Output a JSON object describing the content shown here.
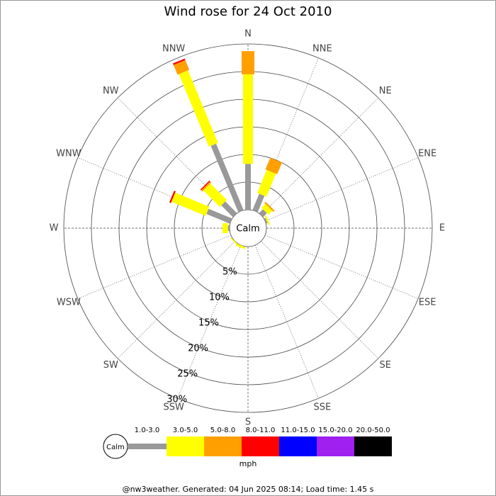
{
  "chart_data": {
    "type": "wind_rose",
    "title": "Wind rose for 24 Oct 2010",
    "directions": [
      "N",
      "NNE",
      "NE",
      "ENE",
      "E",
      "ESE",
      "SE",
      "SSE",
      "S",
      "SSW",
      "SW",
      "WSW",
      "W",
      "WNW",
      "NW",
      "NNW"
    ],
    "calm_label": "Calm",
    "unit": "mph",
    "rlim": [
      0,
      30
    ],
    "rticks": [
      {
        "value": 5,
        "label": "5%"
      },
      {
        "value": 10,
        "label": "10%"
      },
      {
        "value": 15,
        "label": "15%"
      },
      {
        "value": 20,
        "label": "20%"
      },
      {
        "value": 25,
        "label": "25%"
      },
      {
        "value": 30,
        "label": "30%"
      }
    ],
    "series": [
      {
        "name": "1.0-3.0",
        "color": "#999999",
        "values": [
          8.3,
          3.2,
          1.0,
          0.3,
          0,
          0,
          0,
          0,
          0,
          0,
          0,
          0,
          0.3,
          4.6,
          3.0,
          13.0
        ]
      },
      {
        "name": "3.0-5.0",
        "color": "#ffff00",
        "values": [
          16.2,
          4.5,
          1.0,
          0.3,
          0,
          0,
          0,
          0,
          0,
          0.4,
          0.2,
          0,
          1.0,
          6.7,
          4.2,
          14.2
        ]
      },
      {
        "name": "5.0-8.0",
        "color": "#ffa000",
        "values": [
          4.2,
          2.3,
          0.3,
          0,
          0,
          0,
          0,
          0,
          0,
          0,
          0,
          0,
          0,
          0,
          0.3,
          1.9
        ]
      },
      {
        "name": "8.0-11.0",
        "color": "#ff0000",
        "values": [
          0,
          0,
          0,
          0,
          0,
          0,
          0,
          0,
          0,
          0,
          0,
          0,
          0,
          0.3,
          0.2,
          0.3
        ]
      },
      {
        "name": "11.0-15.0",
        "color": "#0000ff",
        "values": [
          0,
          0,
          0,
          0,
          0,
          0,
          0,
          0,
          0,
          0,
          0,
          0,
          0,
          0,
          0,
          0
        ]
      },
      {
        "name": "15.0-20.0",
        "color": "#a020f0",
        "values": [
          0,
          0,
          0,
          0,
          0,
          0,
          0,
          0,
          0,
          0,
          0,
          0,
          0,
          0,
          0,
          0
        ]
      },
      {
        "name": "20.0-50.0",
        "color": "#000000",
        "values": [
          0,
          0,
          0,
          0,
          0,
          0,
          0,
          0,
          0,
          0,
          0,
          0,
          0,
          0,
          0,
          0
        ]
      }
    ]
  },
  "footer": "@nw3weather. Generated: 04 Jun 2025 08:14; Load time: 1.45 s"
}
